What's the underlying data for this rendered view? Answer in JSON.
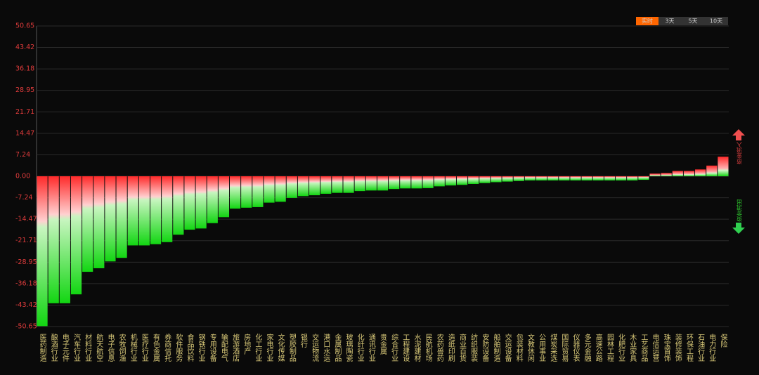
{
  "chart_data": {
    "type": "bar",
    "buttons": [
      "实时",
      "3天",
      "5天",
      "10天"
    ],
    "inflow_label": "资金流入",
    "outflow_label": "资金流出",
    "colors": {
      "positive": "#ff2a2a",
      "negative": "#12d612"
    },
    "categories": [
      "医药制造",
      "酿酒行业",
      "电子元件",
      "汽车行业",
      "材料行业",
      "航天航空",
      "电子信息",
      "农牧饲渔",
      "机械行业",
      "医疗行业",
      "有色金属",
      "券商信托",
      "软件服务",
      "食品饮料",
      "钢铁行业",
      "专用设备",
      "输配电气",
      "旅游酒店",
      "房地产",
      "化工行业",
      "家电行业",
      "文化传媒",
      "塑胶制品",
      "银行",
      "交运物流",
      "港口水运",
      "金属制品",
      "玻璃陶瓷",
      "化纤行业",
      "通讯行业",
      "贵金属",
      "综合行业",
      "工程建设",
      "水泥建材",
      "民航机场",
      "农药兽药",
      "造纸印刷",
      "商业百货",
      "纺织服装",
      "安防设备",
      "船舶制造",
      "交运设备",
      "包装材料",
      "文教休闲",
      "公用事业",
      "煤炭采选",
      "国际贸易",
      "仪器仪表",
      "多元金融",
      "高速公路",
      "园林工程",
      "化肥行业",
      "木业家具",
      "工艺商品",
      "电信运营",
      "珠宝首饰",
      "装修装饰",
      "环保工程",
      "石油行业",
      "电力行业",
      "保险"
    ],
    "values": [
      -50.5,
      -42.8,
      -42.8,
      -39.8,
      -32.2,
      -31.0,
      -28.7,
      -27.5,
      -23.3,
      -23.3,
      -22.9,
      -22.2,
      -19.7,
      -18.0,
      -17.6,
      -15.8,
      -13.8,
      -10.9,
      -10.6,
      -10.4,
      -8.9,
      -8.6,
      -7.3,
      -6.7,
      -6.4,
      -5.9,
      -5.6,
      -5.6,
      -5.0,
      -4.8,
      -4.8,
      -4.3,
      -4.1,
      -4.1,
      -4.0,
      -3.4,
      -3.1,
      -2.9,
      -2.6,
      -2.3,
      -2.0,
      -1.8,
      -1.6,
      -1.4,
      -1.4,
      -1.4,
      -1.4,
      -1.4,
      -1.4,
      -1.4,
      -1.4,
      -1.4,
      -1.4,
      -1.2,
      0.9,
      1.1,
      1.8,
      1.8,
      2.3,
      3.6,
      6.6
    ],
    "ylim": [
      -50.65,
      50.65
    ],
    "yticks": [
      50.65,
      43.42,
      36.18,
      28.95,
      21.71,
      14.47,
      7.24,
      {
        "value": 0,
        "label": "0.00"
      },
      -7.24,
      -14.47,
      -21.71,
      -28.95,
      -36.18,
      -43.42,
      -50.65
    ],
    "grid": true
  }
}
